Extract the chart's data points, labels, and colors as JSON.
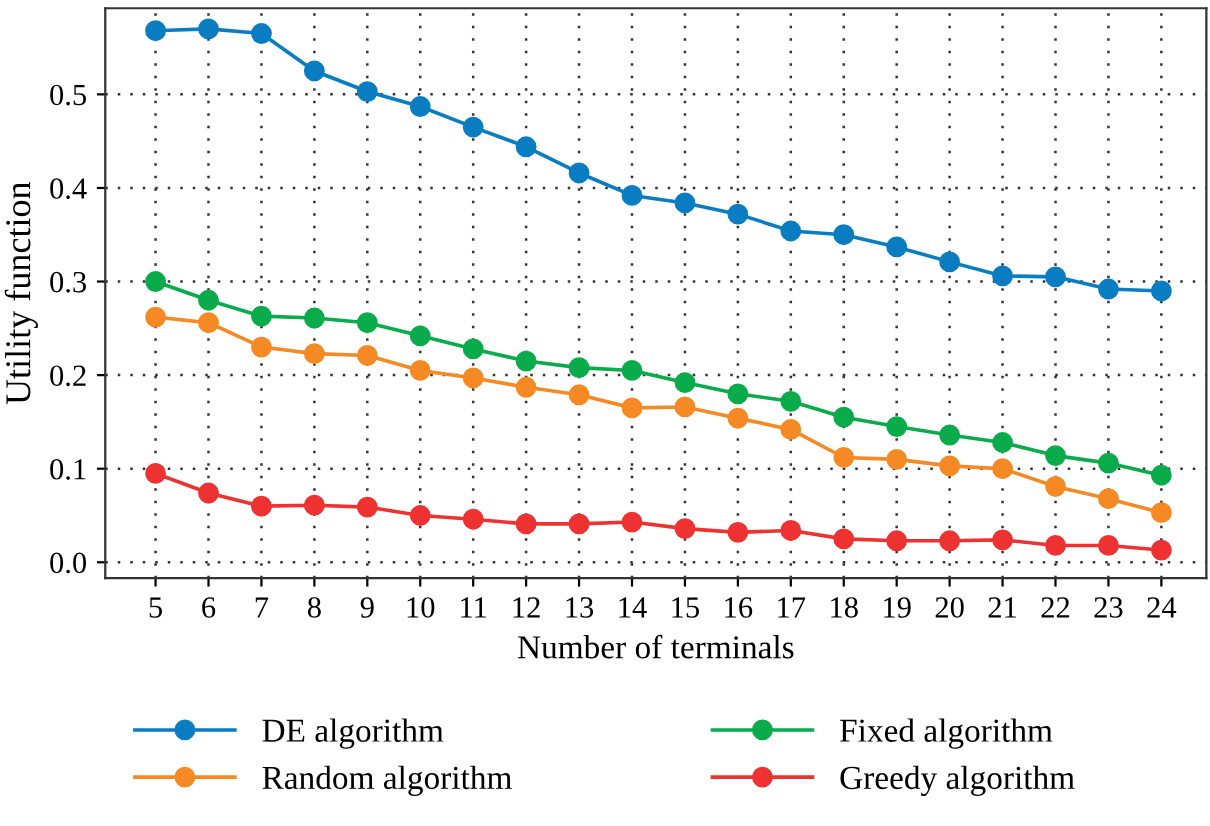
{
  "chart_data": {
    "type": "line",
    "xlabel": "Number of terminals",
    "ylabel": "Utility function",
    "x": [
      5,
      6,
      7,
      8,
      9,
      10,
      11,
      12,
      13,
      14,
      15,
      16,
      17,
      18,
      19,
      20,
      21,
      22,
      23,
      24
    ],
    "xlim": [
      4.05,
      24.85
    ],
    "xticks": [
      5,
      6,
      7,
      8,
      9,
      10,
      11,
      12,
      13,
      14,
      15,
      16,
      17,
      18,
      19,
      20,
      21,
      22,
      23,
      24
    ],
    "ylim": [
      -0.017,
      0.592
    ],
    "yticks": [
      {
        "value": 0,
        "label": "0.0"
      },
      0.1,
      0.2,
      0.3,
      0.4,
      0.5
    ],
    "grid": true,
    "legend": "bottom",
    "marker": "circle",
    "line_style": "solid",
    "series": [
      {
        "name": "DE algorithm",
        "color": "#0a7dc2",
        "values": [
          0.568,
          0.57,
          0.565,
          0.525,
          0.503,
          0.487,
          0.465,
          0.444,
          0.416,
          0.392,
          0.384,
          0.372,
          0.354,
          0.35,
          0.337,
          0.321,
          0.306,
          0.305,
          0.292,
          0.29
        ]
      },
      {
        "name": "Random algorithm",
        "color": "#f58a25",
        "values": [
          0.262,
          0.256,
          0.23,
          0.223,
          0.221,
          0.205,
          0.197,
          0.187,
          0.179,
          0.165,
          0.166,
          0.154,
          0.142,
          0.112,
          0.11,
          0.103,
          0.1,
          0.081,
          0.068,
          0.053
        ]
      },
      {
        "name": "Fixed algorithm",
        "color": "#0aab4a",
        "values": [
          0.3,
          0.28,
          0.263,
          0.261,
          0.256,
          0.242,
          0.228,
          0.215,
          0.208,
          0.205,
          0.192,
          0.18,
          0.172,
          0.155,
          0.145,
          0.136,
          0.128,
          0.114,
          0.106,
          0.093
        ]
      },
      {
        "name": "Greedy algorithm",
        "color": "#ee3232",
        "values": [
          0.095,
          0.074,
          0.06,
          0.061,
          0.059,
          0.05,
          0.046,
          0.041,
          0.041,
          0.043,
          0.036,
          0.032,
          0.034,
          0.025,
          0.023,
          0.023,
          0.024,
          0.018,
          0.018,
          0.013
        ]
      }
    ]
  }
}
